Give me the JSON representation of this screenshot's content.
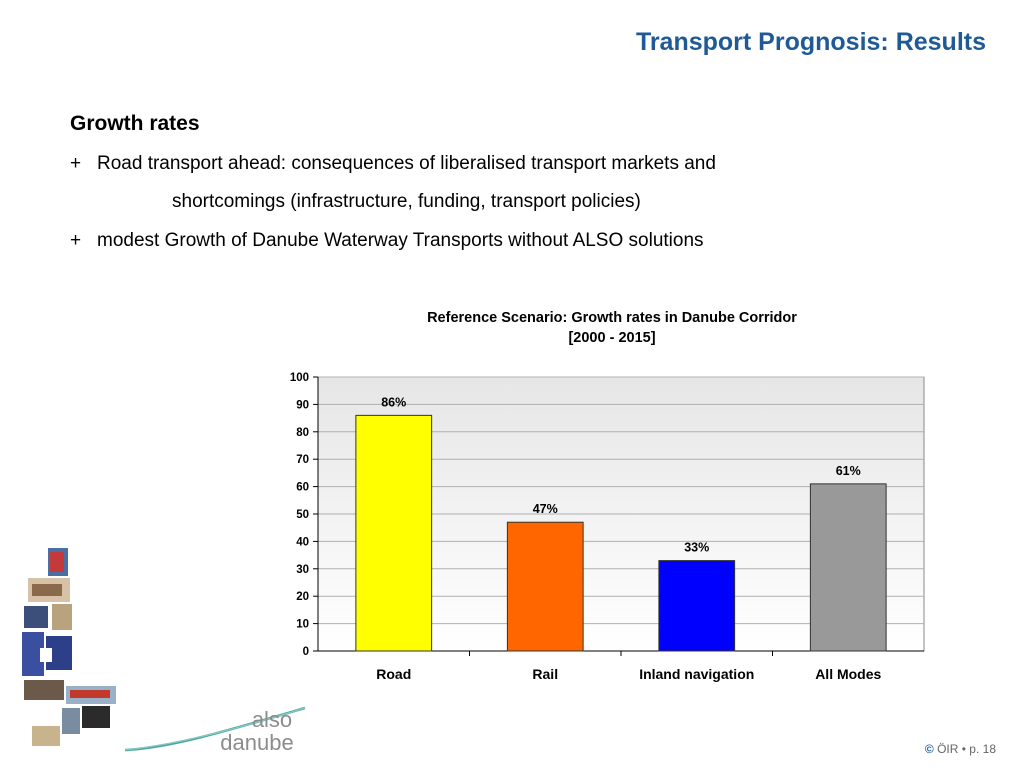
{
  "slide": {
    "title": "Transport Prognosis: Results",
    "heading": "Growth rates",
    "bullet_marker": "+",
    "bullet1_line1": "Road transport ahead: consequences of liberalised transport markets and",
    "bullet1_line2": "shortcomings  (infrastructure, funding, transport policies)",
    "bullet2": "modest Growth of Danube Waterway Transports without ALSO solutions"
  },
  "footer": {
    "copyright_symbol": "©",
    "text": "ÖIR • p. 18"
  },
  "logo": {
    "line1": "also",
    "line2": "danube"
  },
  "colors": {
    "title": "#1f5a96",
    "plot_bg_top": "#e6e6e6",
    "plot_bg_bottom": "#ffffff"
  },
  "chart_data": {
    "type": "bar",
    "title": "Reference Scenario: Growth rates in Danube Corridor",
    "subtitle": "[2000 - 2015]",
    "categories": [
      "Road",
      "Rail",
      "Inland navigation",
      "All Modes"
    ],
    "values": [
      86,
      47,
      33,
      61
    ],
    "data_labels": [
      "86%",
      "47%",
      "33%",
      "61%"
    ],
    "bar_colors": [
      "#ffff00",
      "#ff6600",
      "#0000ff",
      "#999999"
    ],
    "yticks": [
      "0",
      "10",
      "20",
      "30",
      "40",
      "50",
      "60",
      "70",
      "80",
      "90",
      "100"
    ],
    "ylim": [
      0,
      100
    ],
    "xlabel": "",
    "ylabel": "",
    "grid": true,
    "legend": "none"
  }
}
